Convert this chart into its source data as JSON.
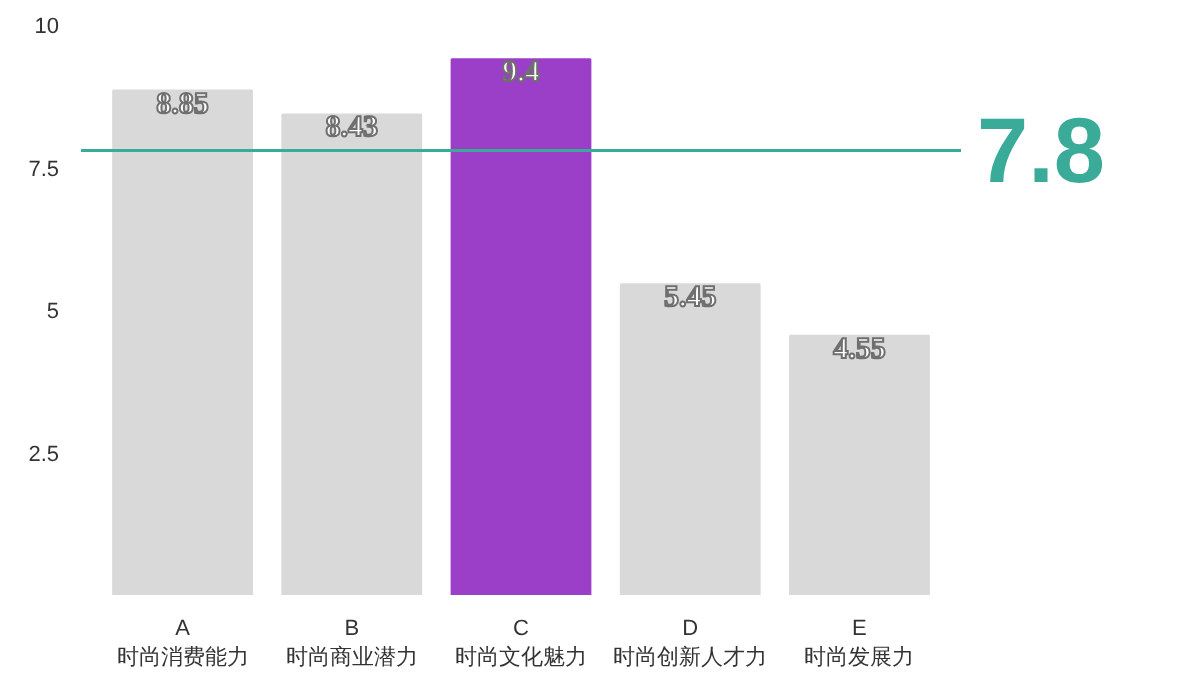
{
  "chart_data": {
    "type": "bar",
    "categories": [
      "A\n时尚消费能力",
      "B\n时尚商业潜力",
      "C\n时尚文化魅力",
      "D\n时尚创新人才力",
      "E\n时尚发展力"
    ],
    "values": [
      8.85,
      8.43,
      9.4,
      5.45,
      4.55
    ],
    "colors": [
      "#d9d9d9",
      "#d9d9d9",
      "#9b3ec8",
      "#d9d9d9",
      "#d9d9d9"
    ],
    "ylim": [
      0,
      10
    ],
    "yticks": [
      2.5,
      5,
      7.5,
      10
    ],
    "data_labels": true,
    "grid": false,
    "ref_lines": [
      {
        "axis": "y",
        "value": 7.8,
        "label": "7.8",
        "color": "#3aab98"
      }
    ]
  }
}
